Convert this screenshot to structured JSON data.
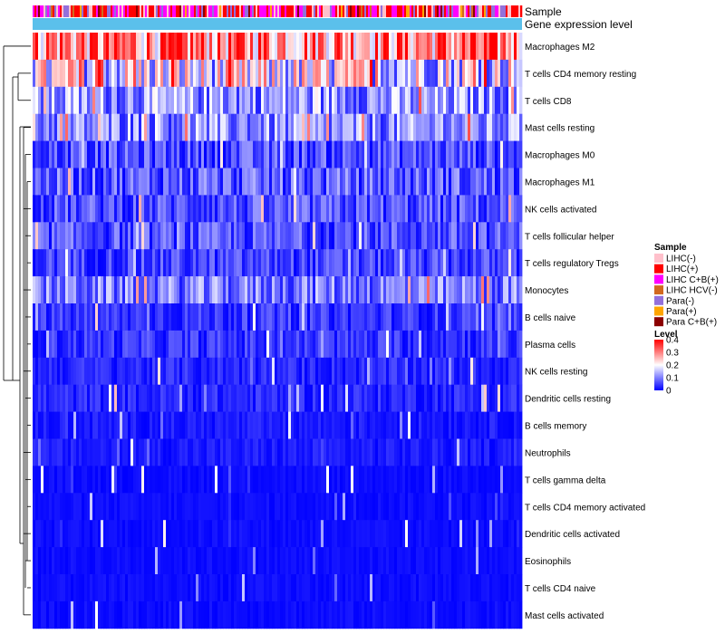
{
  "chart_data": {
    "type": "heatmap",
    "title": "",
    "annotation_tracks": [
      "Sample",
      "Gene expression level"
    ],
    "rows": [
      {
        "name": "Macrophages M2",
        "mean_level": 0.3
      },
      {
        "name": "T cells CD4 memory resting",
        "mean_level": 0.17
      },
      {
        "name": "T cells CD8",
        "mean_level": 0.11
      },
      {
        "name": "Mast cells resting",
        "mean_level": 0.1
      },
      {
        "name": "Macrophages M0",
        "mean_level": 0.06
      },
      {
        "name": "Macrophages M1",
        "mean_level": 0.07
      },
      {
        "name": "NK cells activated",
        "mean_level": 0.06
      },
      {
        "name": "T cells follicular helper",
        "mean_level": 0.06
      },
      {
        "name": "T cells regulatory  Tregs",
        "mean_level": 0.05
      },
      {
        "name": "Monocytes",
        "mean_level": 0.09
      },
      {
        "name": "B cells naive",
        "mean_level": 0.04
      },
      {
        "name": "Plasma cells",
        "mean_level": 0.04
      },
      {
        "name": "NK cells resting",
        "mean_level": 0.03
      },
      {
        "name": "Dendritic cells resting",
        "mean_level": 0.03
      },
      {
        "name": "B cells memory",
        "mean_level": 0.02
      },
      {
        "name": "Neutrophils",
        "mean_level": 0.02
      },
      {
        "name": "T cells gamma delta",
        "mean_level": 0.01
      },
      {
        "name": "T cells CD4 memory activated",
        "mean_level": 0.01
      },
      {
        "name": "Dendritic cells activated",
        "mean_level": 0.01
      },
      {
        "name": "Eosinophils",
        "mean_level": 0.01
      },
      {
        "name": "T cells CD4 naive",
        "mean_level": 0.01
      },
      {
        "name": "Mast cells activated",
        "mean_level": 0.01
      }
    ],
    "legend_sample": {
      "title": "Sample",
      "entries": [
        {
          "label": "LIHC(-)",
          "color": "#FFC0CB"
        },
        {
          "label": "LIHC(+)",
          "color": "#FF0000"
        },
        {
          "label": "LIHC C+B(+)",
          "color": "#FF00FF"
        },
        {
          "label": "LIHC HCV(-)",
          "color": "#D2691E"
        },
        {
          "label": "Para(-)",
          "color": "#9370DB"
        },
        {
          "label": "Para(+)",
          "color": "#FFA500"
        },
        {
          "label": "Para C+B(+)",
          "color": "#8B0000"
        }
      ]
    },
    "legend_level": {
      "title": "Level",
      "ticks": [
        {
          "value": 0.4,
          "label": "0.4"
        },
        {
          "value": 0.3,
          "label": "0.3"
        },
        {
          "value": 0.2,
          "label": "0.2"
        },
        {
          "value": 0.1,
          "label": "0.1"
        },
        {
          "value": 0,
          "label": "0"
        }
      ],
      "range": [
        0,
        0.4
      ],
      "colors": {
        "low": "#0000FF",
        "mid": "#FFFFFF",
        "high": "#FF0000"
      }
    },
    "gene_expression_color": "#5BC0EB"
  }
}
